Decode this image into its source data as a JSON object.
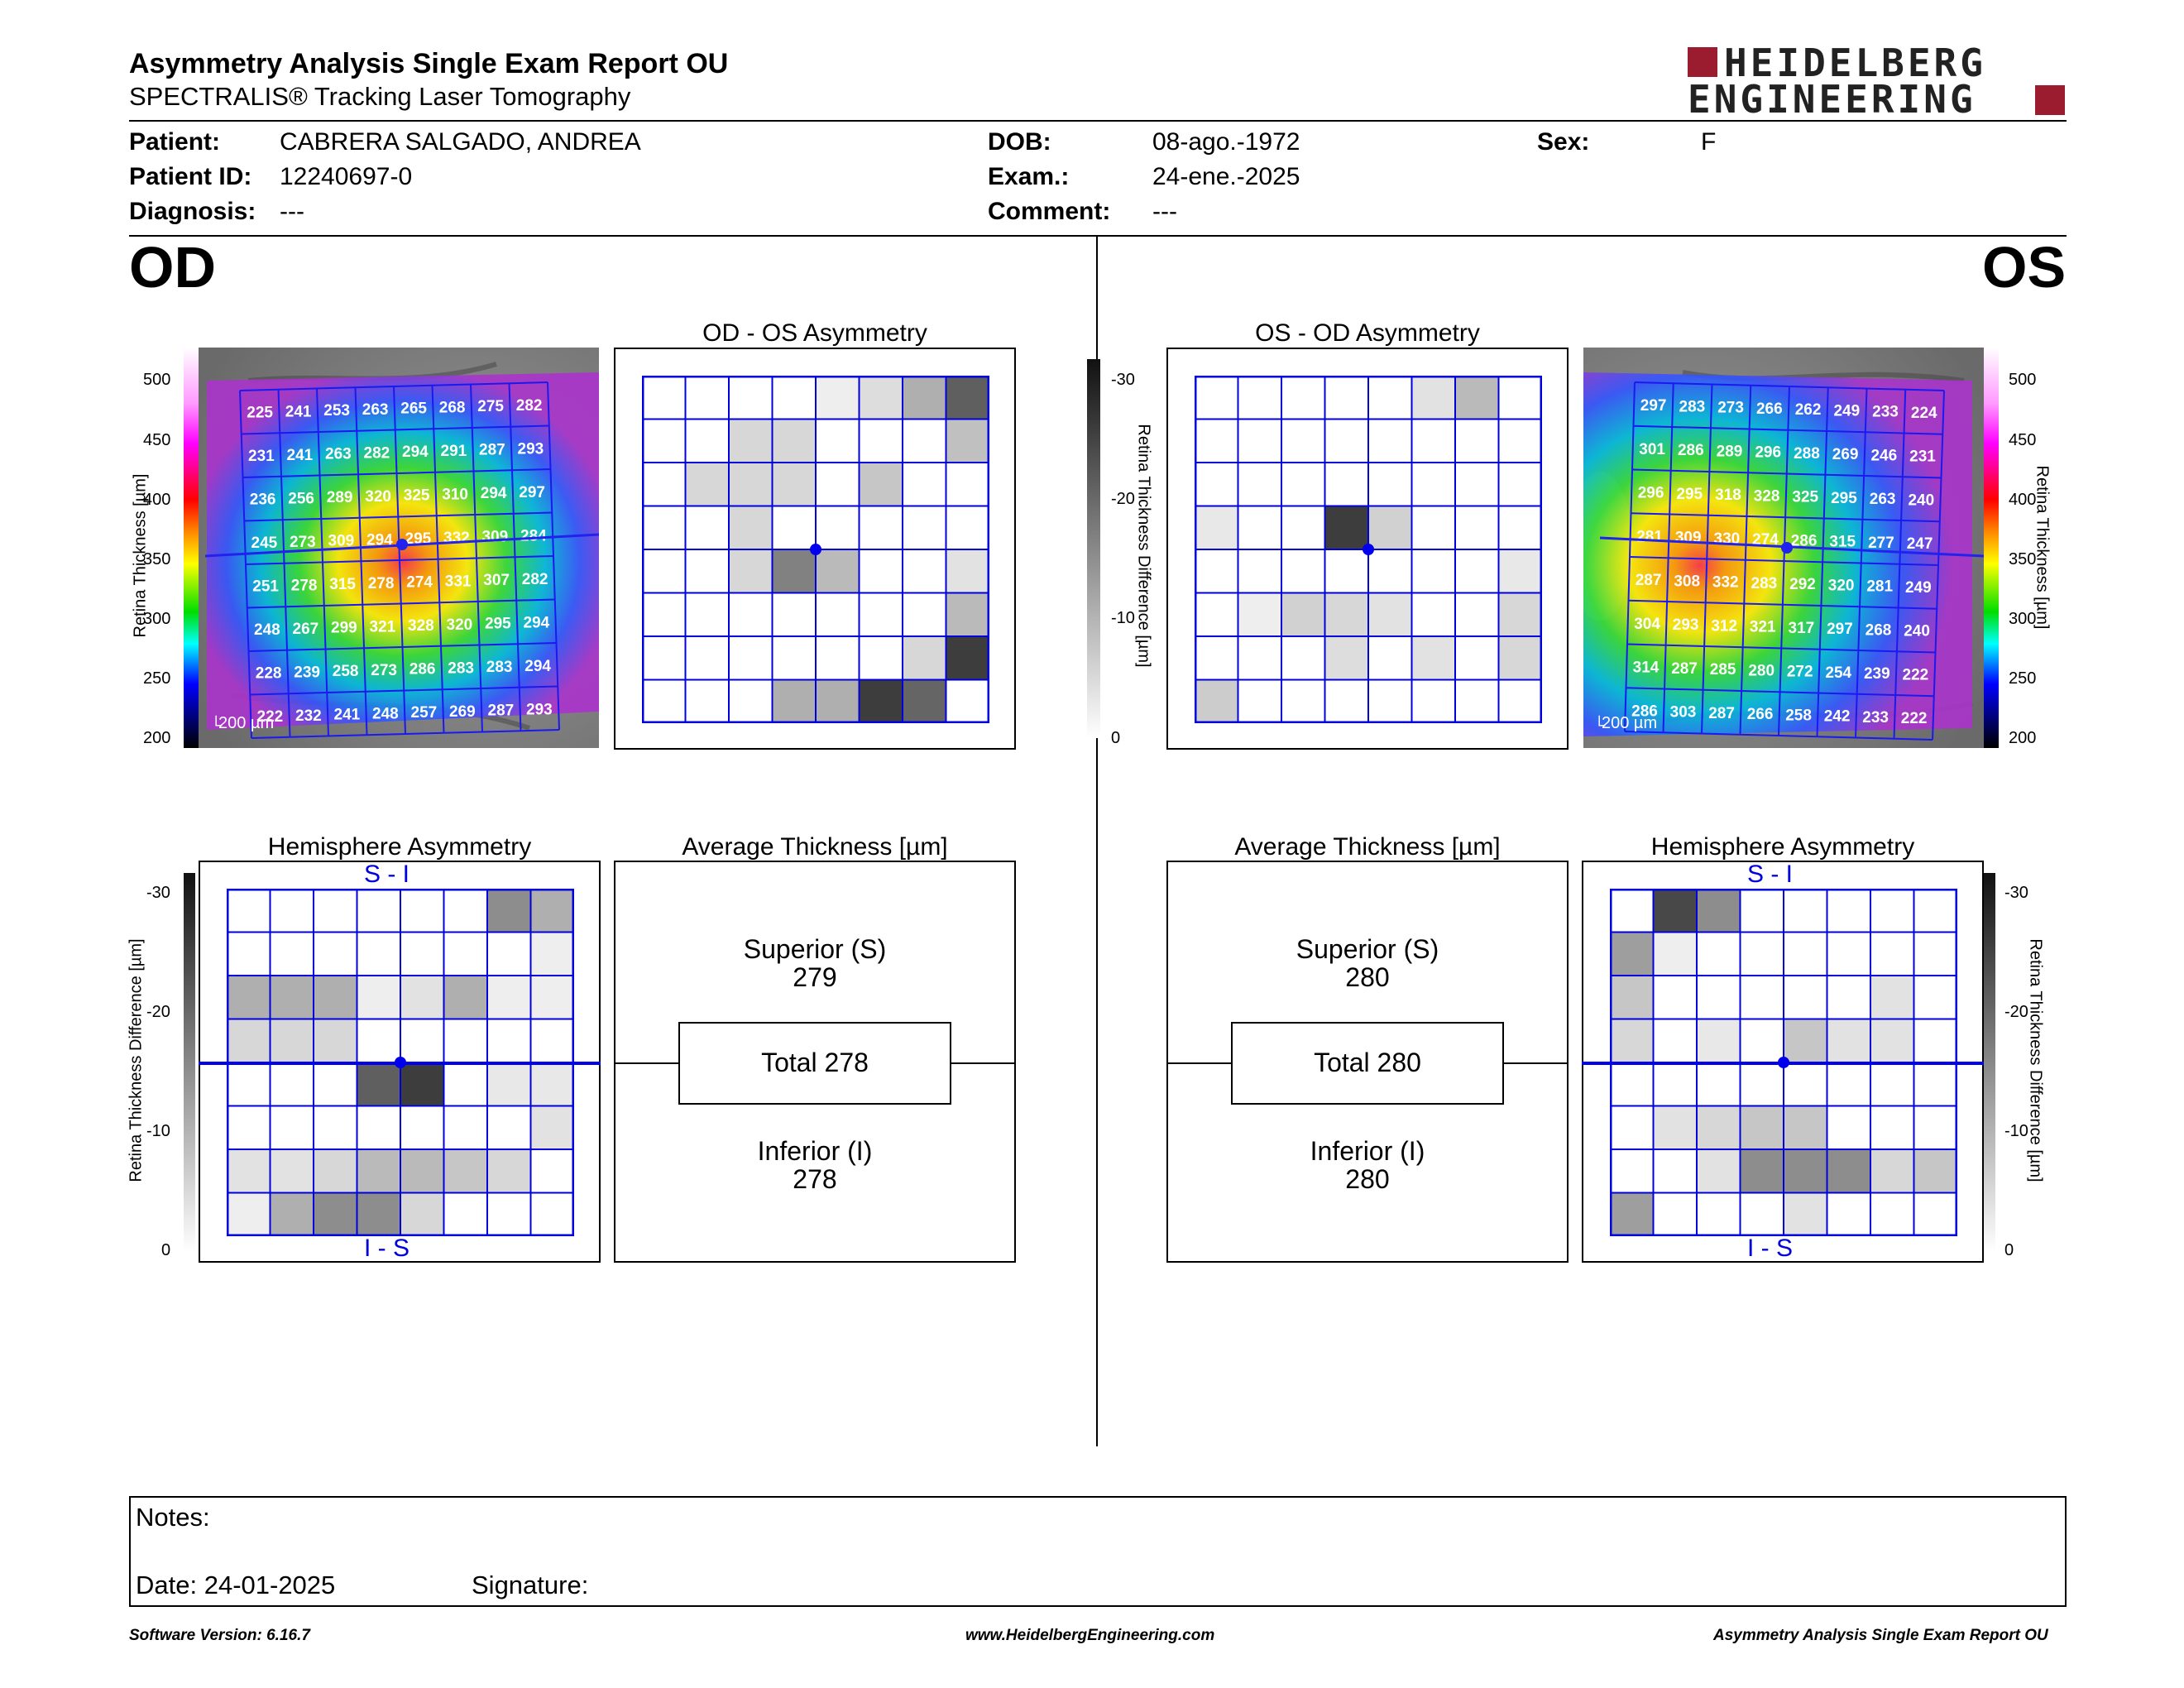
{
  "header": {
    "title": "Asymmetry Analysis Single Exam Report OU",
    "subtitle": "SPECTRALIS® Tracking Laser Tomography",
    "logo_line1": "HEIDELBERG",
    "logo_line2": "ENGINEERING",
    "brand_color": "#9b1c2e"
  },
  "patient": {
    "patient_label": "Patient:",
    "patient_value": "CABRERA SALGADO, ANDREA",
    "id_label": "Patient ID:",
    "id_value": "12240697-0",
    "diagnosis_label": "Diagnosis:",
    "diagnosis_value": "---",
    "dob_label": "DOB:",
    "dob_value": "08-ago.-1972",
    "exam_label": "Exam.:",
    "exam_value": "24-ene.-2025",
    "comment_label": "Comment:",
    "comment_value": "---",
    "sex_label": "Sex:",
    "sex_value": "F"
  },
  "od": {
    "eye_label": "OD",
    "scale_bar": "200 µm",
    "thickness_axis_label": "Retina  Thickness [µm]",
    "thickness_ticks": [
      "500",
      "450",
      "400",
      "350",
      "300",
      "250",
      "200"
    ],
    "thickness_grid": [
      [
        225,
        241,
        253,
        263,
        265,
        268,
        275,
        282
      ],
      [
        231,
        241,
        263,
        282,
        294,
        291,
        287,
        293
      ],
      [
        236,
        256,
        289,
        320,
        325,
        310,
        294,
        297
      ],
      [
        245,
        273,
        309,
        294,
        295,
        332,
        309,
        284
      ],
      [
        251,
        278,
        315,
        278,
        274,
        331,
        307,
        282
      ],
      [
        248,
        267,
        299,
        321,
        328,
        320,
        295,
        294
      ],
      [
        228,
        239,
        258,
        273,
        286,
        283,
        283,
        294
      ],
      [
        222,
        232,
        241,
        248,
        257,
        269,
        287,
        293
      ]
    ],
    "asym_title": "OD - OS Asymmetry",
    "asym_grid": [
      [
        0,
        0,
        0,
        0,
        3,
        6,
        14,
        28
      ],
      [
        0,
        0,
        7,
        7,
        0,
        0,
        0,
        11
      ],
      [
        0,
        7,
        7,
        7,
        0,
        10,
        0,
        0
      ],
      [
        0,
        0,
        7,
        0,
        0,
        0,
        0,
        0
      ],
      [
        0,
        0,
        7,
        22,
        12,
        0,
        0,
        5
      ],
      [
        0,
        0,
        0,
        0,
        0,
        0,
        0,
        12
      ],
      [
        0,
        0,
        0,
        0,
        0,
        0,
        7,
        34
      ],
      [
        0,
        0,
        0,
        14,
        14,
        34,
        27,
        0
      ]
    ],
    "diff_axis_label": "Retina Thickness Difference [µm]",
    "diff_ticks": [
      "-30",
      "-20",
      "-10",
      "0"
    ],
    "hemi_title": "Hemisphere Asymmetry",
    "hemi_top_label": "S - I",
    "hemi_bottom_label": "I - S",
    "hemi_grid": [
      [
        0,
        0,
        0,
        0,
        0,
        0,
        20,
        14
      ],
      [
        0,
        0,
        0,
        0,
        0,
        0,
        0,
        3
      ],
      [
        14,
        14,
        14,
        3,
        5,
        14,
        3,
        3
      ],
      [
        7,
        7,
        7,
        0,
        0,
        0,
        0,
        0
      ],
      [
        0,
        0,
        0,
        28,
        34,
        0,
        4,
        4
      ],
      [
        0,
        0,
        0,
        0,
        0,
        0,
        0,
        5
      ],
      [
        5,
        5,
        7,
        12,
        12,
        10,
        7,
        0
      ],
      [
        3,
        14,
        20,
        20,
        7,
        0,
        0,
        0
      ]
    ],
    "avg_title": "Average Thickness [µm]",
    "superior_label": "Superior (S)",
    "superior_value": "279",
    "total_label": "Total 278",
    "inferior_label": "Inferior (I)",
    "inferior_value": "278"
  },
  "os": {
    "eye_label": "OS",
    "scale_bar": "200 µm",
    "thickness_axis_label": "Retina  Thickness [µm]",
    "thickness_ticks": [
      "500",
      "450",
      "400",
      "350",
      "300",
      "250",
      "200"
    ],
    "thickness_grid": [
      [
        297,
        283,
        273,
        266,
        262,
        249,
        233,
        224
      ],
      [
        301,
        286,
        289,
        296,
        288,
        269,
        246,
        231
      ],
      [
        296,
        295,
        318,
        328,
        325,
        295,
        263,
        240
      ],
      [
        281,
        309,
        330,
        274,
        286,
        315,
        277,
        247
      ],
      [
        287,
        308,
        332,
        283,
        292,
        320,
        281,
        249
      ],
      [
        304,
        293,
        312,
        321,
        317,
        297,
        268,
        240
      ],
      [
        314,
        287,
        285,
        280,
        272,
        254,
        239,
        222
      ],
      [
        286,
        303,
        287,
        266,
        258,
        242,
        233,
        222
      ]
    ],
    "asym_title": "OS - OD Asymmetry",
    "asym_grid": [
      [
        0,
        0,
        0,
        0,
        0,
        5,
        12,
        0
      ],
      [
        0,
        0,
        0,
        0,
        0,
        0,
        0,
        0
      ],
      [
        0,
        0,
        0,
        0,
        0,
        0,
        0,
        0
      ],
      [
        4,
        0,
        0,
        34,
        8,
        0,
        0,
        0
      ],
      [
        0,
        0,
        0,
        0,
        0,
        0,
        0,
        4
      ],
      [
        0,
        3,
        8,
        7,
        5,
        0,
        0,
        7
      ],
      [
        0,
        0,
        0,
        6,
        0,
        5,
        0,
        7
      ],
      [
        9,
        0,
        0,
        0,
        0,
        0,
        0,
        0
      ]
    ],
    "diff_axis_label": "Retina Thickness Difference [µm]",
    "diff_ticks": [
      "-30",
      "-20",
      "-10",
      "0"
    ],
    "hemi_title": "Hemisphere Asymmetry",
    "hemi_top_label": "S - I",
    "hemi_bottom_label": "I - S",
    "hemi_grid": [
      [
        0,
        32,
        20,
        0,
        0,
        0,
        0,
        0
      ],
      [
        17,
        3,
        0,
        0,
        0,
        0,
        0,
        0
      ],
      [
        10,
        0,
        0,
        0,
        0,
        0,
        5,
        0
      ],
      [
        7,
        0,
        4,
        0,
        10,
        5,
        5,
        0
      ],
      [
        0,
        0,
        0,
        0,
        0,
        0,
        0,
        0
      ],
      [
        0,
        5,
        7,
        10,
        10,
        0,
        0,
        0
      ],
      [
        0,
        0,
        5,
        20,
        20,
        20,
        7,
        10
      ],
      [
        17,
        0,
        0,
        0,
        5,
        0,
        0,
        0
      ]
    ],
    "avg_title": "Average Thickness [µm]",
    "superior_label": "Superior (S)",
    "superior_value": "280",
    "total_label": "Total 280",
    "inferior_label": "Inferior (I)",
    "inferior_value": "280"
  },
  "notes": {
    "notes_label": "Notes:",
    "date_label": "Date: 24-01-2025",
    "signature_label": "Signature:"
  },
  "footer": {
    "software_version": "Software Version: 6.16.7",
    "website": "www.HeidelbergEngineering.com",
    "report_name": "Asymmetry Analysis Single Exam Report OU"
  }
}
